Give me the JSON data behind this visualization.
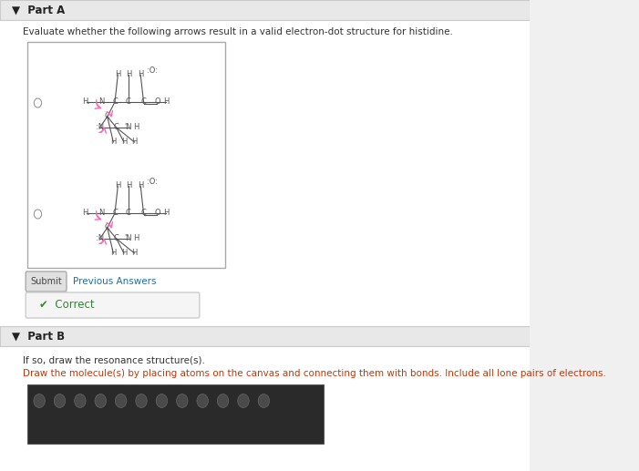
{
  "bg_color": "#f0f0f0",
  "panel_bg": "#ffffff",
  "part_a_title": "Part A",
  "part_b_title": "Part B",
  "part_a_question": "Evaluate whether the following arrows result in a valid electron-dot structure for histidine.",
  "part_b_q1": "If so, draw the resonance structure(s).",
  "part_b_q2": "Draw the molecule(s) by placing atoms on the canvas and connecting them with bonds. Include all lone pairs of electrons.",
  "correct_text": "Correct",
  "submit_text": "Submit",
  "previous_answers_text": "Previous Answers",
  "box_border": "#cccccc",
  "correct_bg": "#f5f5f5",
  "correct_check_color": "#2e8b2e",
  "link_color": "#1a6faf",
  "text_color": "#333333",
  "title_color": "#222222",
  "header_bg": "#e8e8e8",
  "mol_atom_color": "#555555",
  "arrow_color": "#ff69b4"
}
